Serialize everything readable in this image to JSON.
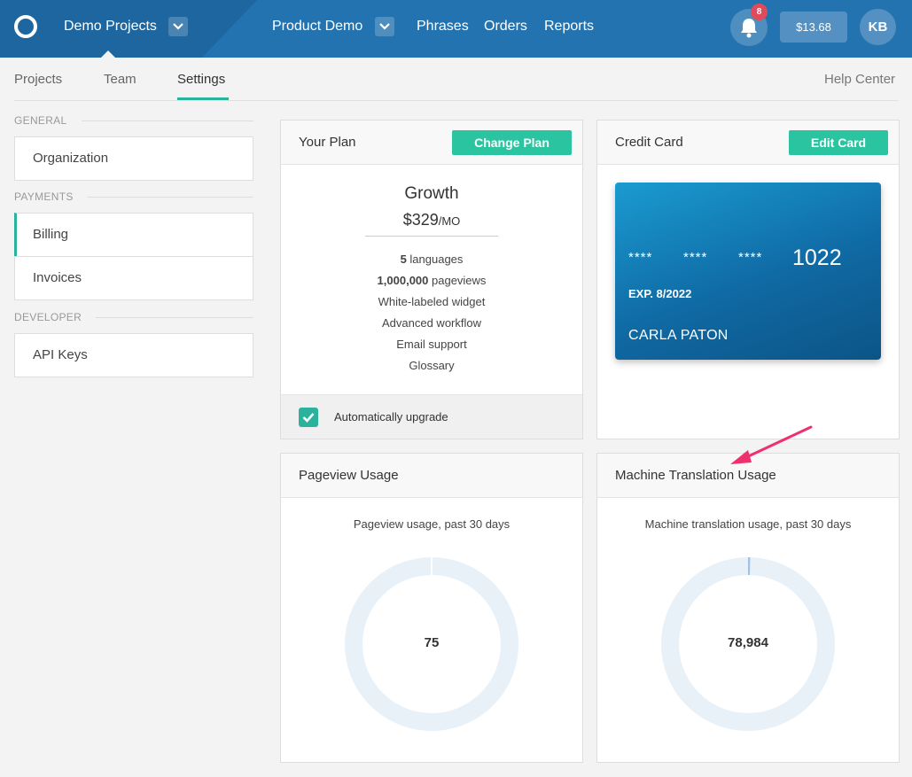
{
  "header": {
    "project_name": "Demo Projects",
    "project2_name": "Product Demo",
    "nav": [
      "Phrases",
      "Orders",
      "Reports"
    ],
    "notification_count": "8",
    "balance": "$13.68",
    "avatar_initials": "KB"
  },
  "subnav": {
    "tabs": [
      "Projects",
      "Team",
      "Settings"
    ],
    "active_tab": "Settings",
    "help": "Help Center"
  },
  "sidebar": {
    "sections": [
      {
        "heading": "GENERAL",
        "items": [
          "Organization"
        ]
      },
      {
        "heading": "PAYMENTS",
        "items": [
          "Billing",
          "Invoices"
        ]
      },
      {
        "heading": "DEVELOPER",
        "items": [
          "API Keys"
        ]
      }
    ],
    "active_item": "Billing"
  },
  "plan": {
    "title": "Your Plan",
    "button": "Change Plan",
    "name": "Growth",
    "price": "$329",
    "period": "/MO",
    "features": [
      {
        "bold": "5",
        "text": " languages"
      },
      {
        "bold": "1,000,000",
        "text": " pageviews"
      },
      {
        "bold": "",
        "text": "White-labeled widget"
      },
      {
        "bold": "",
        "text": "Advanced workflow"
      },
      {
        "bold": "",
        "text": "Email support"
      },
      {
        "bold": "",
        "text": "Glossary"
      }
    ],
    "auto_upgrade_label": "Automatically upgrade",
    "auto_upgrade_checked": true
  },
  "credit_card": {
    "title": "Credit Card",
    "button": "Edit Card",
    "mask": "****",
    "last4": "1022",
    "expiry": "EXP. 8/2022",
    "holder": "CARLA PATON"
  },
  "pageview_usage": {
    "title": "Pageview Usage",
    "subtitle": "Pageview usage, past 30 days",
    "value": "75",
    "fraction_used": 0.0001
  },
  "mt_usage": {
    "title": "Machine Translation Usage",
    "subtitle": "Machine translation usage, past 30 days",
    "value": "78,984",
    "fraction_used": 0.004
  },
  "colors": {
    "topbar": "#2473b1",
    "accent": "#2ab29c",
    "button": "#2ac4a0",
    "badge": "#e04a5a",
    "donut_track": "#e8f0f8",
    "donut_fill": "#9ec3e6",
    "annotation_arrow": "#f0306e"
  }
}
